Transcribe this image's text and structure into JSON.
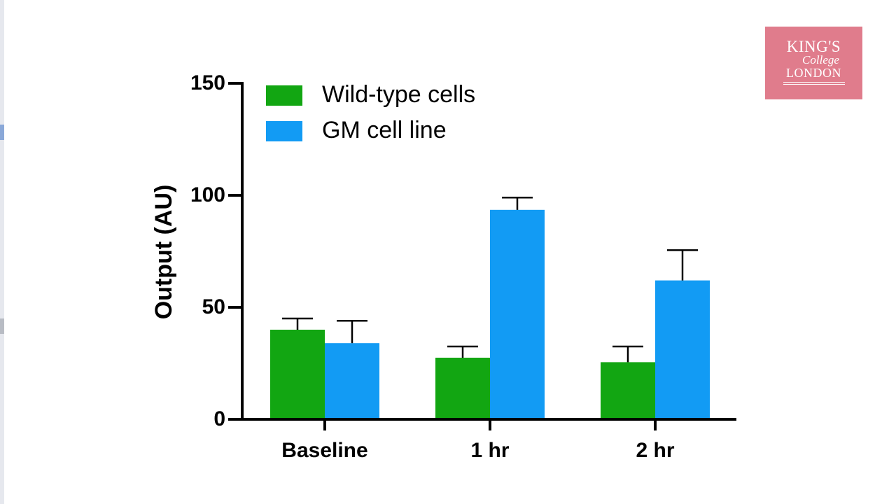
{
  "logo": {
    "line1": "KING'S",
    "line2": "College",
    "line3": "LONDON"
  },
  "colors": {
    "wild_type": "#12a612",
    "gm_line": "#129bf4",
    "logo_bg": "#e07c8c"
  },
  "chart_data": {
    "type": "bar",
    "title": "",
    "xlabel": "",
    "ylabel": "Output (AU)",
    "ylim": [
      0,
      150
    ],
    "yticks": [
      0,
      50,
      100,
      150
    ],
    "categories": [
      "Baseline",
      "1 hr",
      "2 hr"
    ],
    "legend_position": "top-left",
    "series": [
      {
        "name": "Wild-type cells",
        "color": "#12a612",
        "values": [
          40,
          27.5,
          25.5
        ],
        "errors": [
          5,
          5,
          7
        ]
      },
      {
        "name": "GM cell line",
        "color": "#129bf4",
        "values": [
          34,
          93.5,
          62
        ],
        "errors": [
          10,
          5.5,
          13.5
        ]
      }
    ]
  }
}
